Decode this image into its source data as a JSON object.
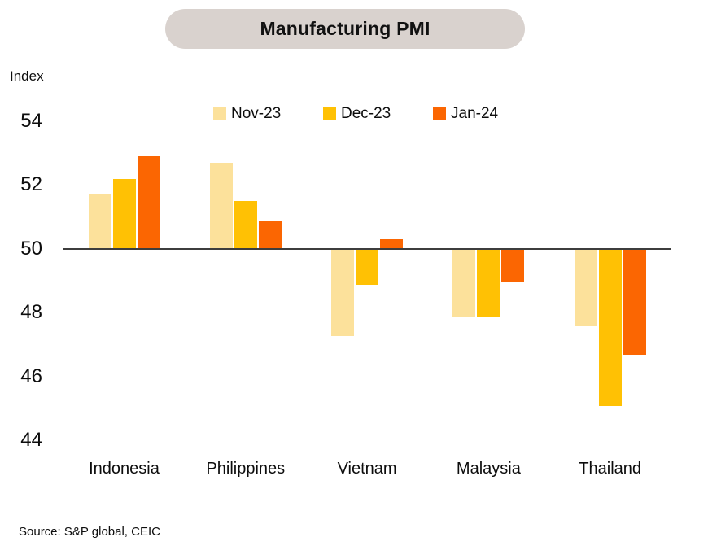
{
  "title": "Manufacturing PMI",
  "y_axis_unit": "Index",
  "source": "Source: S&P global, CEIC",
  "colors": {
    "title_pill_bg": "#D9D2CE",
    "axis_line": "#3d3d3d",
    "nov_23": "#FCE19B",
    "dec_23": "#FFC104",
    "jan_24": "#FB6602"
  },
  "chart_data": {
    "type": "bar",
    "title": "Manufacturing PMI",
    "ylabel": "Index",
    "ylim": [
      44,
      54
    ],
    "y_ticks": [
      54,
      52,
      50,
      48,
      46,
      44
    ],
    "baseline": 50,
    "grid": false,
    "legend_position": "top",
    "categories": [
      "Indonesia",
      "Philippines",
      "Vietnam",
      "Malaysia",
      "Thailand"
    ],
    "series": [
      {
        "name": "Nov-23",
        "color": "#FCE19B",
        "values": [
          51.7,
          52.7,
          47.3,
          47.9,
          47.6
        ]
      },
      {
        "name": "Dec-23",
        "color": "#FFC104",
        "values": [
          52.2,
          51.5,
          48.9,
          47.9,
          45.1
        ]
      },
      {
        "name": "Jan-24",
        "color": "#FB6602",
        "values": [
          52.9,
          50.9,
          50.3,
          49.0,
          46.7
        ]
      }
    ]
  }
}
